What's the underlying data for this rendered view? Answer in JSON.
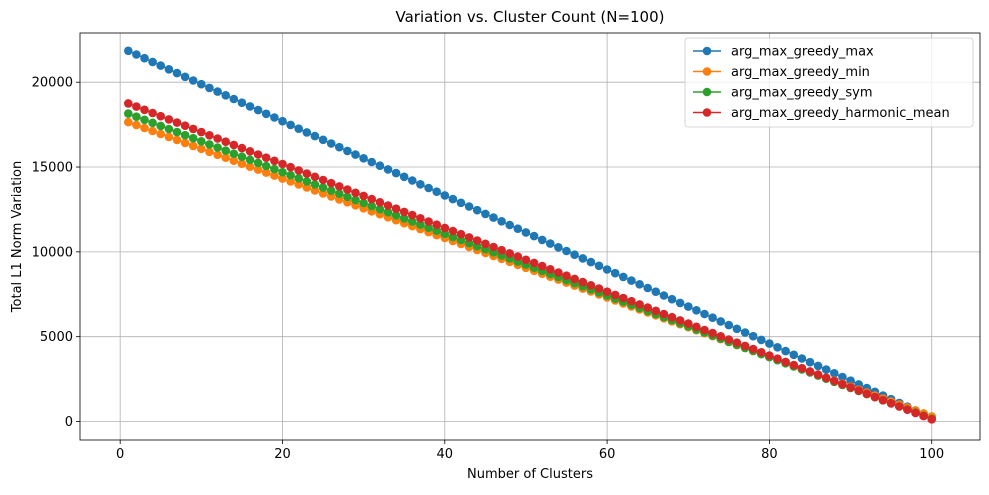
{
  "chart_data": {
    "type": "line",
    "title": "Variation vs. Cluster Count (N=100)",
    "xlabel": "Number of Clusters",
    "ylabel": "Total L1 Norm Variation",
    "xlim": [
      -4.95,
      105.95
    ],
    "ylim": [
      -1090,
      22900
    ],
    "xticks": [
      0,
      20,
      40,
      60,
      80,
      100
    ],
    "yticks": [
      0,
      5000,
      10000,
      15000,
      20000
    ],
    "grid": true,
    "legend_position": "top-right",
    "marker": "circle",
    "x": {
      "start": 1,
      "end": 100,
      "step": 1
    },
    "series": [
      {
        "name": "arg_max_greedy_max",
        "color": "#1f77b4",
        "start": 21850,
        "end": 220
      },
      {
        "name": "arg_max_greedy_min",
        "color": "#ff7f0e",
        "start": 17650,
        "end": 300
      },
      {
        "name": "arg_max_greedy_sym",
        "color": "#2ca02c",
        "start": 18150,
        "end": 160
      },
      {
        "name": "arg_max_greedy_harmonic_mean",
        "color": "#d62728",
        "start": 18750,
        "end": 130
      }
    ]
  }
}
